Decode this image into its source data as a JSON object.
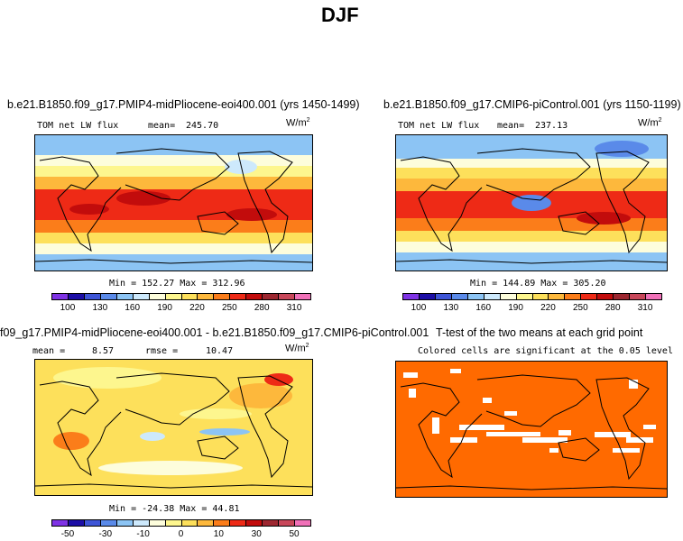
{
  "figure": {
    "title": "DJF"
  },
  "chart_data": [
    {
      "type": "heatmap",
      "title": "b.e21.B1850.f09_g17.PMIP4-midPliocene-eoi400.001 (yrs 1450-1499)",
      "left_label": "TOM net LW flux",
      "stat_label": "mean=",
      "stat_value": "245.70",
      "units": "W/m",
      "units_exp": "2",
      "minmax_text": "Min = 152.27 Max = 312.96",
      "colorbar": {
        "colors": [
          "#7f33e5",
          "#1c0ea6",
          "#3e55d7",
          "#5a8ae9",
          "#8cc4f4",
          "#cde9fc",
          "#fdfddc",
          "#fdf68e",
          "#fde05b",
          "#fdb83c",
          "#fb7d1a",
          "#ee2a16",
          "#c20c0c",
          "#9d2730",
          "#c8475a",
          "#f071b8"
        ],
        "tick_labels": [
          "100",
          "130",
          "160",
          "190",
          "220",
          "250",
          "280",
          "310"
        ]
      }
    },
    {
      "type": "heatmap",
      "title": "b.e21.B1850.f09_g17.CMIP6-piControl.001 (yrs 1150-1199)",
      "left_label": "TOM net LW flux",
      "stat_label": "mean=",
      "stat_value": "237.13",
      "units": "W/m",
      "units_exp": "2",
      "minmax_text": "Min = 144.89 Max = 305.20",
      "colorbar": {
        "colors": [
          "#7f33e5",
          "#1c0ea6",
          "#3e55d7",
          "#5a8ae9",
          "#8cc4f4",
          "#cde9fc",
          "#fdfddc",
          "#fdf68e",
          "#fde05b",
          "#fdb83c",
          "#fb7d1a",
          "#ee2a16",
          "#c20c0c",
          "#9d2730",
          "#c8475a",
          "#f071b8"
        ],
        "tick_labels": [
          "100",
          "130",
          "160",
          "190",
          "220",
          "250",
          "280",
          "310"
        ]
      }
    },
    {
      "type": "heatmap",
      "title": "f09_g17.PMIP4-midPliocene-eoi400.001 - b.e21.B1850.f09_g17.CMIP6-piControl.001",
      "left_label": "mean =",
      "left_value": "8.57",
      "stat_label": "rmse =",
      "stat_value": "10.47",
      "units": "W/m",
      "units_exp": "2",
      "minmax_text": "Min = -24.38 Max = 44.81",
      "colorbar": {
        "colors": [
          "#7f33e5",
          "#1c0ea6",
          "#3e55d7",
          "#5a8ae9",
          "#8cc4f4",
          "#cde9fc",
          "#fdfddc",
          "#fdf68e",
          "#fde05b",
          "#fdb83c",
          "#fb7d1a",
          "#ee2a16",
          "#c20c0c",
          "#9d2730",
          "#c8475a",
          "#f071b8"
        ],
        "tick_labels": [
          "-50",
          "-30",
          "-10",
          "0",
          "10",
          "30",
          "50"
        ]
      }
    },
    {
      "type": "heatmap",
      "title": "T-test of the two means at each grid point",
      "subtitle": "Colored cells are significant at the 0.05 level",
      "significant_color": "#ff6a00"
    }
  ]
}
